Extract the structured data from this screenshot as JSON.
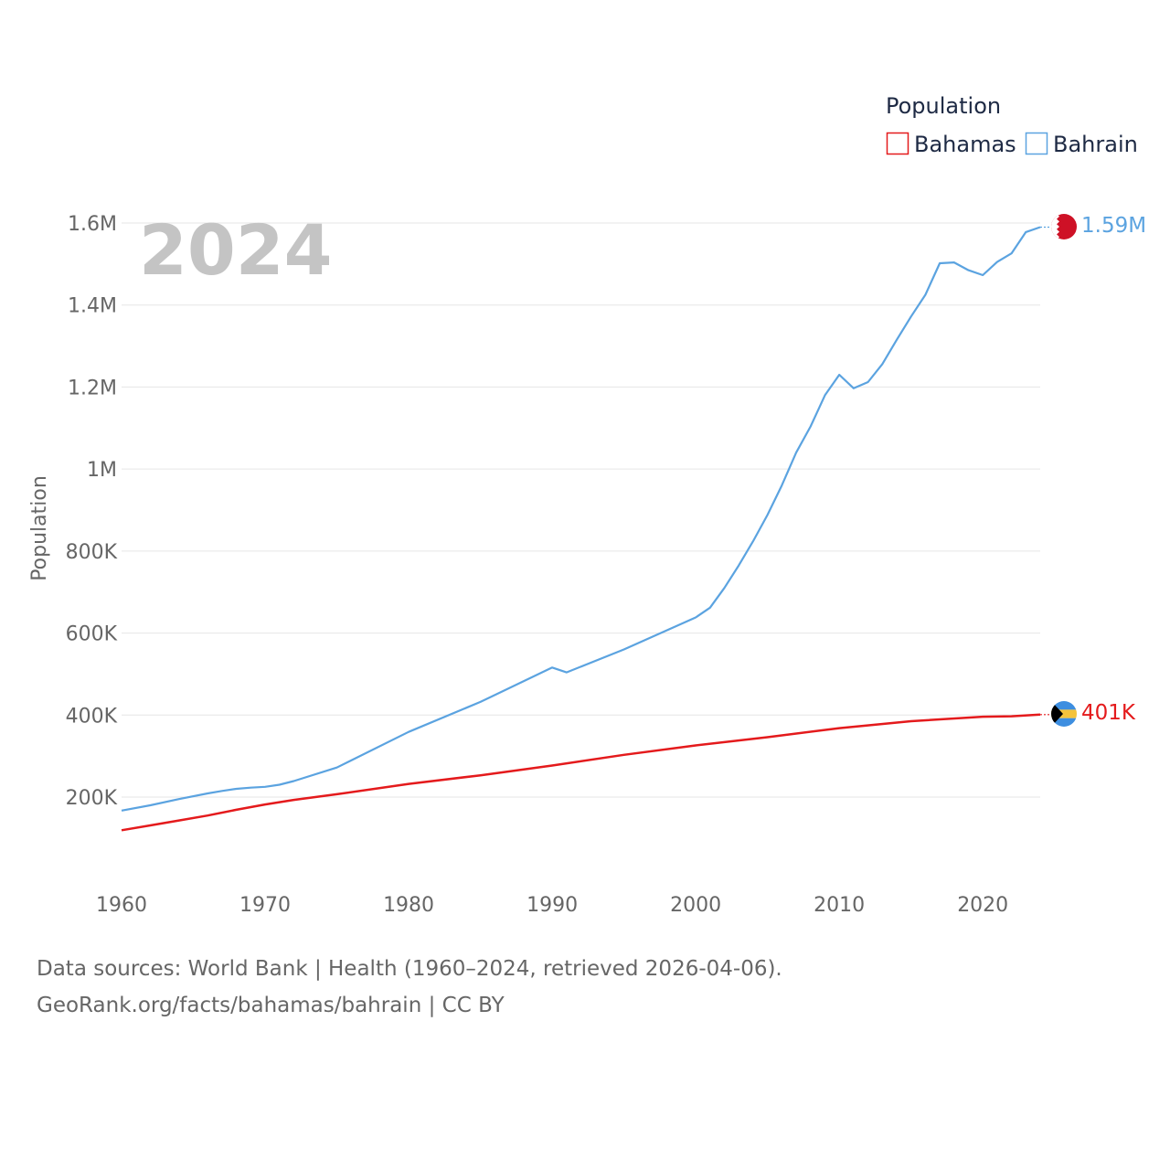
{
  "chart_data": {
    "type": "line",
    "title": "",
    "year_label": "2024",
    "legend_title": "Population",
    "ylabel": "Population",
    "xlabel": "",
    "ylim": [
      40000,
      1650000
    ],
    "xlim": [
      1960,
      2024
    ],
    "y_ticks": [
      {
        "value": 200000,
        "label": "200K"
      },
      {
        "value": 400000,
        "label": "400K"
      },
      {
        "value": 600000,
        "label": "600K"
      },
      {
        "value": 800000,
        "label": "800K"
      },
      {
        "value": 1000000,
        "label": "1M"
      },
      {
        "value": 1200000,
        "label": "1.2M"
      },
      {
        "value": 1400000,
        "label": "1.4M"
      },
      {
        "value": 1600000,
        "label": "1.6M"
      }
    ],
    "x_ticks": [
      {
        "value": 1960,
        "label": "1960"
      },
      {
        "value": 1970,
        "label": "1970"
      },
      {
        "value": 1980,
        "label": "1980"
      },
      {
        "value": 1990,
        "label": "1990"
      },
      {
        "value": 2000,
        "label": "2000"
      },
      {
        "value": 2010,
        "label": "2010"
      },
      {
        "value": 2020,
        "label": "2020"
      }
    ],
    "series": [
      {
        "name": "Bahamas",
        "color": "#e41a1c",
        "end_label": "401K",
        "x": [
          1960,
          1962,
          1964,
          1966,
          1968,
          1970,
          1972,
          1975,
          1980,
          1985,
          1990,
          1995,
          2000,
          2005,
          2010,
          2015,
          2020,
          2022,
          2024
        ],
        "values": [
          119000,
          131000,
          143000,
          155000,
          169000,
          182000,
          193000,
          207000,
          232000,
          253000,
          277000,
          303000,
          326000,
          346000,
          368000,
          385000,
          396000,
          397000,
          401000
        ]
      },
      {
        "name": "Bahrain",
        "color": "#5ba3e0",
        "end_label": "1.59M",
        "x": [
          1960,
          1962,
          1964,
          1966,
          1967,
          1968,
          1969,
          1970,
          1971,
          1972,
          1975,
          1980,
          1985,
          1990,
          1991,
          1995,
          2000,
          2001,
          2002,
          2003,
          2004,
          2005,
          2006,
          2007,
          2008,
          2009,
          2010,
          2011,
          2012,
          2013,
          2014,
          2015,
          2016,
          2017,
          2018,
          2019,
          2020,
          2021,
          2022,
          2023,
          2024
        ],
        "values": [
          167000,
          180000,
          195000,
          209000,
          215000,
          220000,
          223000,
          225000,
          230000,
          239000,
          272000,
          359000,
          432000,
          516000,
          504000,
          560000,
          638000,
          662000,
          710000,
          765000,
          824000,
          888000,
          960000,
          1040000,
          1104000,
          1180000,
          1230000,
          1197000,
          1212000,
          1256000,
          1315000,
          1372000,
          1425000,
          1502000,
          1504000,
          1485000,
          1473000,
          1505000,
          1526000,
          1578000,
          1590000
        ]
      }
    ],
    "grid": true,
    "legend_position": "top-right"
  },
  "footer": {
    "line1": "Data sources: World Bank | Health (1960–2024, retrieved 2026-04-06).",
    "line2": "GeoRank.org/facts/bahamas/bahrain | CC BY"
  }
}
